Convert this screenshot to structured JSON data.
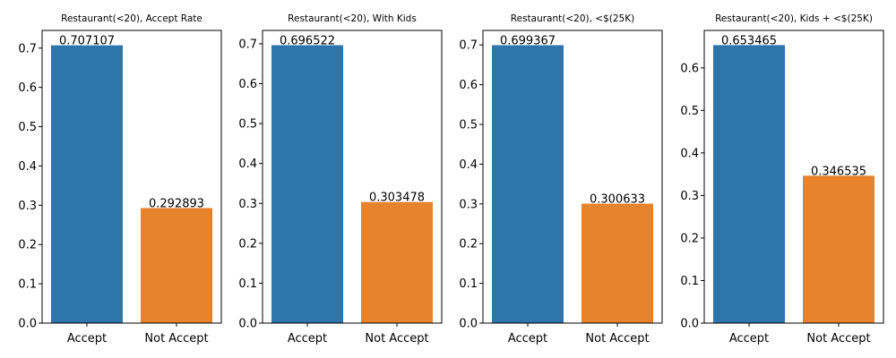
{
  "chart_data": [
    {
      "type": "bar",
      "title": "Restaurant(<20), Accept Rate",
      "categories": [
        "Accept",
        "Not Accept"
      ],
      "values": [
        0.707107,
        0.292893
      ],
      "value_labels": [
        "0.707107",
        "0.292893"
      ],
      "colors": [
        "#2e75ab",
        "#e6832c"
      ],
      "ylim": [
        0,
        0.745
      ],
      "yticks": [
        0.0,
        0.1,
        0.2,
        0.3,
        0.4,
        0.5,
        0.6,
        0.7
      ],
      "ytick_labels": [
        "0.0",
        "0.1",
        "0.2",
        "0.3",
        "0.4",
        "0.5",
        "0.6",
        "0.7"
      ],
      "xlabel": "",
      "ylabel": "",
      "grid": false
    },
    {
      "type": "bar",
      "title": "Restaurant(<20), With Kids",
      "categories": [
        "Accept",
        "Not Accept"
      ],
      "values": [
        0.696522,
        0.303478
      ],
      "value_labels": [
        "0.696522",
        "0.303478"
      ],
      "colors": [
        "#2e75ab",
        "#e6832c"
      ],
      "ylim": [
        0,
        0.7335
      ],
      "yticks": [
        0.0,
        0.1,
        0.2,
        0.3,
        0.4,
        0.5,
        0.6,
        0.7
      ],
      "ytick_labels": [
        "0.0",
        "0.1",
        "0.2",
        "0.3",
        "0.4",
        "0.5",
        "0.6",
        "0.7"
      ],
      "xlabel": "",
      "ylabel": "",
      "grid": false
    },
    {
      "type": "bar",
      "title": "Restaurant(<20), <$(25K)",
      "categories": [
        "Accept",
        "Not Accept"
      ],
      "values": [
        0.699367,
        0.300633
      ],
      "value_labels": [
        "0.699367",
        "0.300633"
      ],
      "colors": [
        "#2e75ab",
        "#e6832c"
      ],
      "ylim": [
        0,
        0.7365
      ],
      "yticks": [
        0.0,
        0.1,
        0.2,
        0.3,
        0.4,
        0.5,
        0.6,
        0.7
      ],
      "ytick_labels": [
        "0.0",
        "0.1",
        "0.2",
        "0.3",
        "0.4",
        "0.5",
        "0.6",
        "0.7"
      ],
      "xlabel": "",
      "ylabel": "",
      "grid": false
    },
    {
      "type": "bar",
      "title": "Restaurant(<20), Kids + <$(25K)",
      "categories": [
        "Accept",
        "Not Accept"
      ],
      "values": [
        0.653465,
        0.346535
      ],
      "value_labels": [
        "0.653465",
        "0.346535"
      ],
      "colors": [
        "#2e75ab",
        "#e6832c"
      ],
      "ylim": [
        0,
        0.688
      ],
      "yticks": [
        0.0,
        0.1,
        0.2,
        0.3,
        0.4,
        0.5,
        0.6
      ],
      "ytick_labels": [
        "0.0",
        "0.1",
        "0.2",
        "0.3",
        "0.4",
        "0.5",
        "0.6"
      ],
      "xlabel": "",
      "ylabel": "",
      "grid": false
    }
  ]
}
